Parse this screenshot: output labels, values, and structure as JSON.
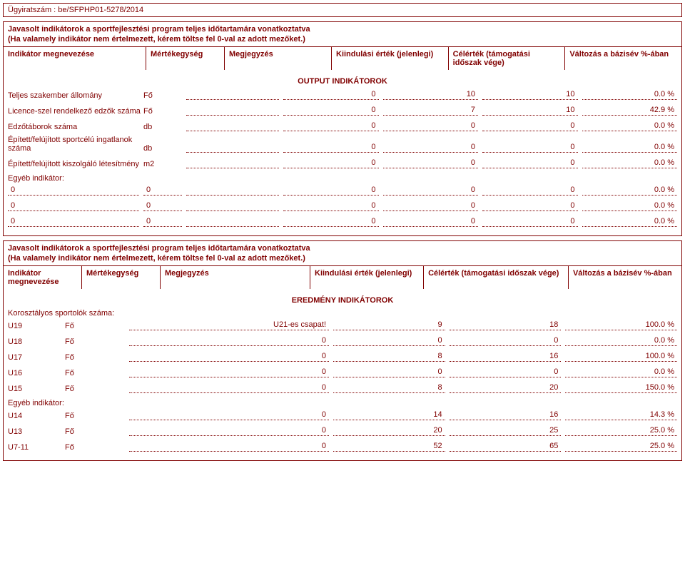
{
  "case_number_label": "Ügyiratszám : ",
  "case_number": "be/SFPHP01-5278/2014",
  "section1": {
    "title": "Javasolt indikátorok a sportfejlesztési program teljes időtartamára vonatkoztatva",
    "subtitle": "(Ha valamely indikátor nem értelmezett, kérem töltse fel 0-val az adott mezőket.)",
    "headers": {
      "name": "Indikátor megnevezése",
      "unit": "Mértékegység",
      "note": "Megjegyzés",
      "start": "Kiindulási érték (jelenlegi)",
      "target": "Célérték (támogatási időszak vége)",
      "change": "Változás a bázisév %-ában"
    },
    "group_label": "OUTPUT INDIKÁTOROK",
    "rows": [
      {
        "label": "Teljes szakember állomány",
        "unit": "Fő",
        "note": "",
        "start": "0",
        "target": "10",
        "t2": "10",
        "change": "0.0 %"
      },
      {
        "label": "Licence-szel rendelkező edzők száma",
        "unit": "Fő",
        "note": "",
        "start": "0",
        "target": "7",
        "t2": "10",
        "change": "42.9 %"
      },
      {
        "label": "Edzőtáborok száma",
        "unit": "db",
        "note": "",
        "start": "0",
        "target": "0",
        "t2": "0",
        "change": "0.0 %"
      },
      {
        "label": "Épített/felújított sportcélú ingatlanok száma",
        "unit": "db",
        "note": "",
        "start": "0",
        "target": "0",
        "t2": "0",
        "change": "0.0 %"
      },
      {
        "label": "Épített/felújított kiszolgáló létesítmény",
        "unit": "m2",
        "note": "",
        "start": "0",
        "target": "0",
        "t2": "0",
        "change": "0.0 %"
      }
    ],
    "other_label": "Egyéb indikátor:",
    "other_rows": [
      {
        "label": "0",
        "unit": "0",
        "note": "",
        "start": "0",
        "target": "0",
        "t2": "0",
        "change": "0.0 %"
      },
      {
        "label": "0",
        "unit": "0",
        "note": "",
        "start": "0",
        "target": "0",
        "t2": "0",
        "change": "0.0 %"
      },
      {
        "label": "0",
        "unit": "0",
        "note": "",
        "start": "0",
        "target": "0",
        "t2": "0",
        "change": "0.0 %"
      }
    ]
  },
  "section2": {
    "title": "Javasolt indikátorok a sportfejlesztési program teljes időtartamára vonatkoztatva",
    "subtitle": "(Ha valamely indikátor nem értelmezett, kérem töltse fel 0-val az adott mezőket.)",
    "headers": {
      "name": "Indikátor megnevezése",
      "unit": "Mértékegység",
      "note": "Megjegyzés",
      "start": "Kiindulási érték (jelenlegi)",
      "target": "Célérték (támogatási időszak vége)",
      "change": "Változás a bázisév %-ában"
    },
    "group_label": "EREDMÉNY INDIKÁTOROK",
    "age_label": "Korosztályos sportolók száma:",
    "rows": [
      {
        "label": "U19",
        "unit": "Fő",
        "note": "U21-es csapat!",
        "start": "9",
        "target": "18",
        "change": "100.0 %"
      },
      {
        "label": "U18",
        "unit": "Fő",
        "note": "0",
        "start": "0",
        "target": "0",
        "change": "0.0 %"
      },
      {
        "label": "U17",
        "unit": "Fő",
        "note": "0",
        "start": "8",
        "target": "16",
        "change": "100.0 %"
      },
      {
        "label": "U16",
        "unit": "Fő",
        "note": "0",
        "start": "0",
        "target": "0",
        "change": "0.0 %"
      },
      {
        "label": "U15",
        "unit": "Fő",
        "note": "0",
        "start": "8",
        "target": "20",
        "change": "150.0 %"
      }
    ],
    "other_label": "Egyéb indikátor:",
    "other_rows": [
      {
        "label": "U14",
        "unit": "Fő",
        "note": "0",
        "start": "14",
        "target": "16",
        "change": "14.3 %"
      },
      {
        "label": "U13",
        "unit": "Fő",
        "note": "0",
        "start": "20",
        "target": "25",
        "change": "25.0 %"
      },
      {
        "label": "U7-11",
        "unit": "Fő",
        "note": "0",
        "start": "52",
        "target": "65",
        "change": "25.0 %"
      }
    ]
  }
}
